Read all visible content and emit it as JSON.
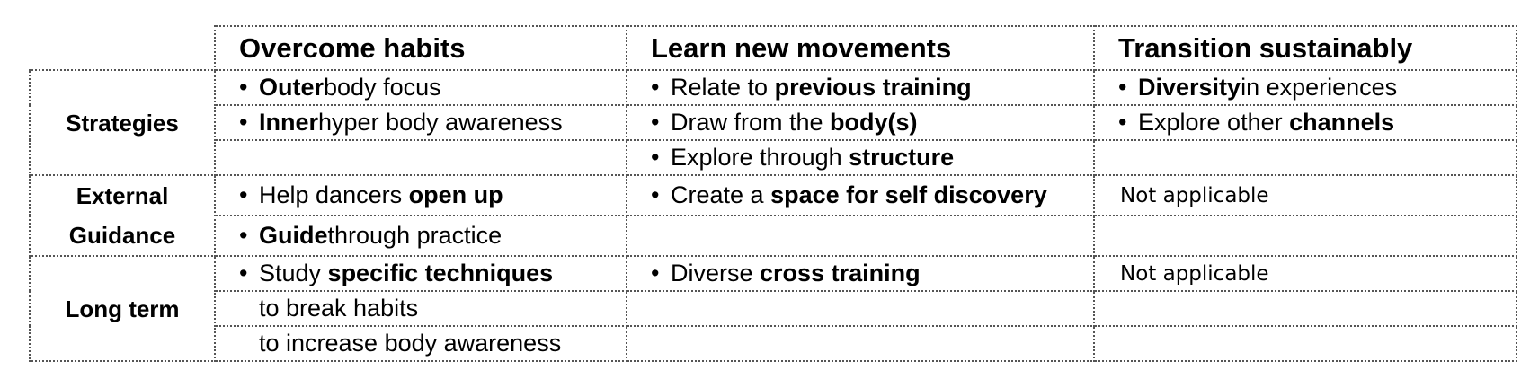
{
  "columns": [
    "Overcome habits",
    "Learn new movements",
    "Transition sustainably"
  ],
  "rows": {
    "strategies": {
      "label": "Strategies",
      "r1": {
        "c1": {
          "bullet": "•",
          "bold": "Outer",
          "rest": "body focus"
        },
        "c2": {
          "bullet": "•",
          "pre": "Relate to ",
          "bold": "previous training"
        },
        "c3": {
          "bullet": "•",
          "bold": "Diversity",
          "rest": "in experiences"
        }
      },
      "r2": {
        "c1": {
          "bullet": "•",
          "bold": "Inner",
          "rest": "hyper body awareness"
        },
        "c2": {
          "bullet": "•",
          "pre": "Draw from the ",
          "bold": "body(s)"
        },
        "c3": {
          "bullet": "•",
          "pre": "Explore other ",
          "bold": "channels"
        }
      },
      "r3": {
        "c2": {
          "bullet": "•",
          "pre": "Explore through ",
          "bold": "structure"
        }
      }
    },
    "external": {
      "label_line1": "External",
      "label_line2": "Guidance",
      "r1": {
        "c1": {
          "bullet": "•",
          "pre": "Help dancers ",
          "bold": "open up"
        },
        "c2": {
          "bullet": "•",
          "pre": "Create a ",
          "bold": "space for self discovery"
        },
        "c3": "Not applicable"
      },
      "r2": {
        "c1": {
          "bullet": "•",
          "bold": "Guide",
          "rest": "through practice"
        }
      }
    },
    "longterm": {
      "label": "Long term",
      "r1": {
        "c1": {
          "bullet": "•",
          "pre": "Study ",
          "bold": "specific techniques"
        },
        "c2": {
          "bullet": "•",
          "pre": "Diverse ",
          "bold": "cross training"
        },
        "c3": "Not applicable"
      },
      "r2": {
        "c1": "to break habits"
      },
      "r3": {
        "c1": "to increase body awareness"
      }
    }
  }
}
